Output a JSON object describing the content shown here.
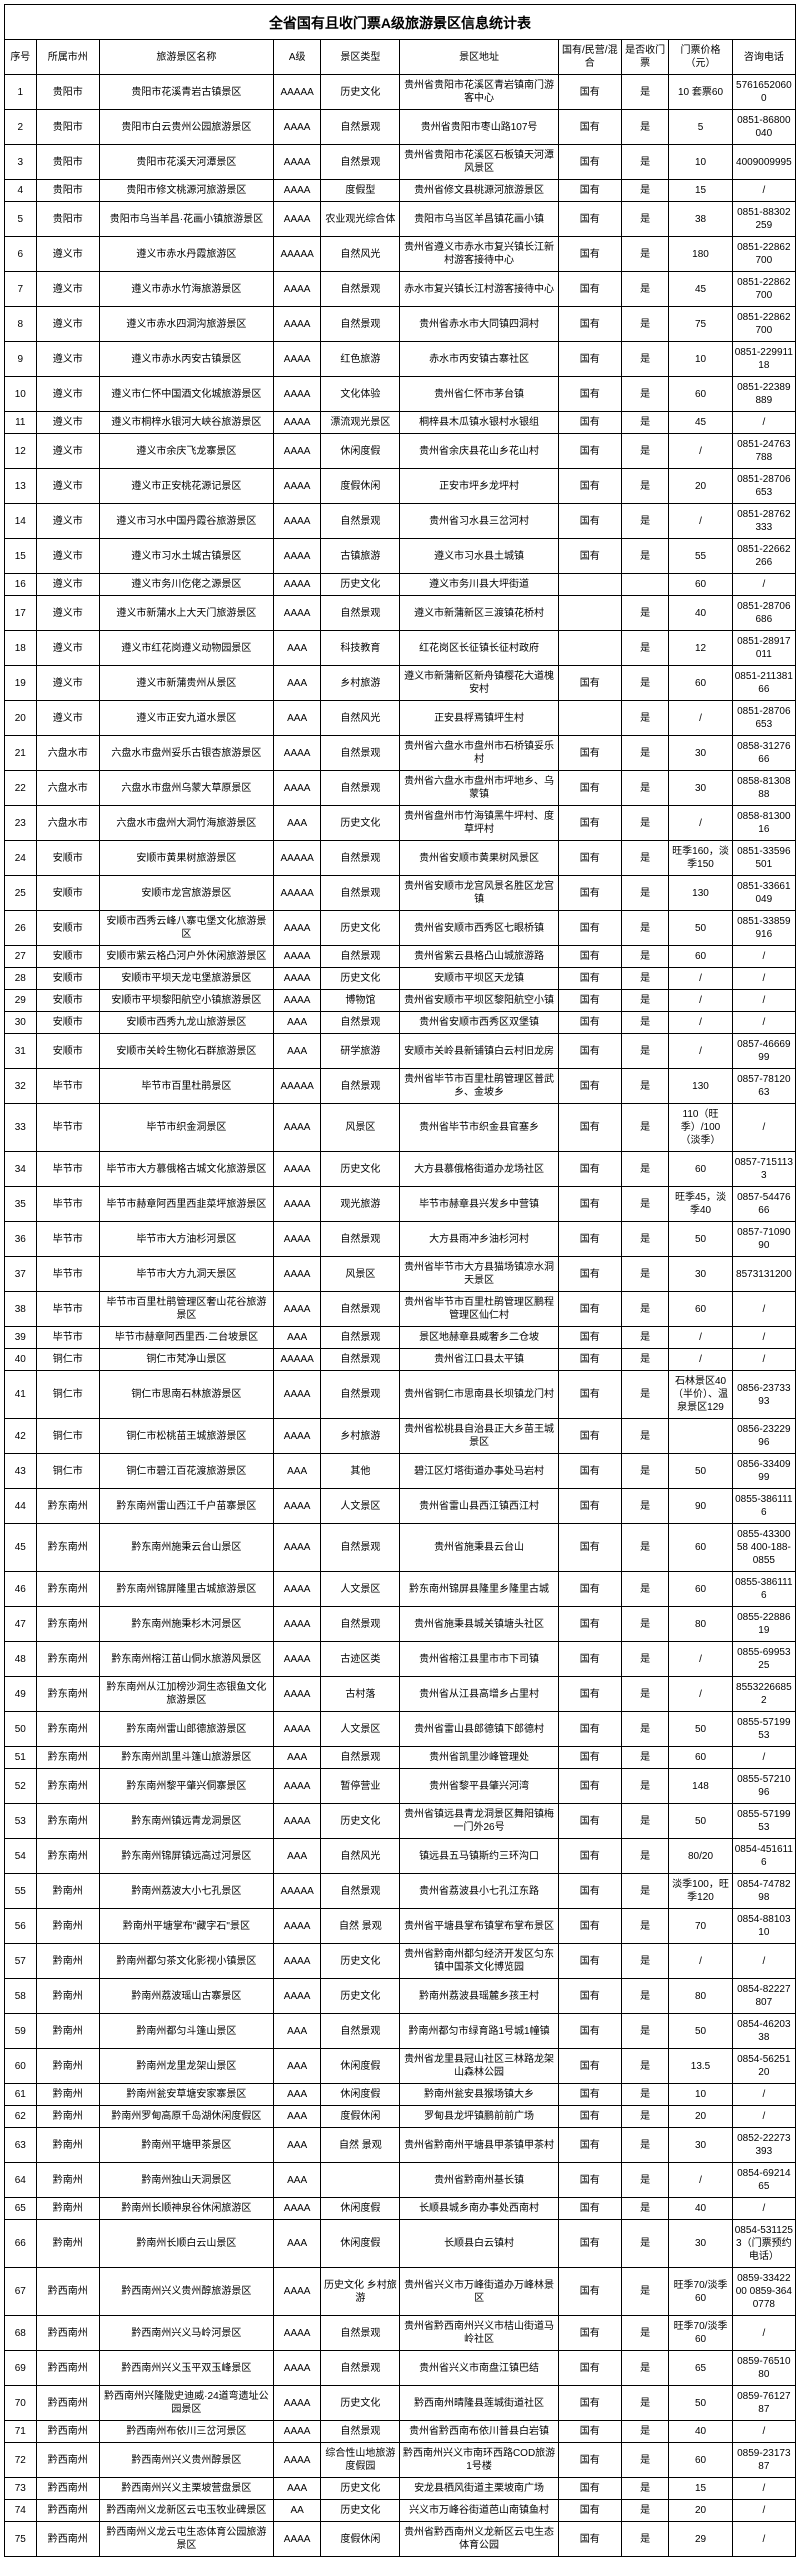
{
  "title": "全省国有且收门票A级旅游景区信息统计表",
  "columns": [
    "序号",
    "所属市州",
    "旅游景区名称",
    "A级",
    "景区类型",
    "景区地址",
    "国有/民营/混合",
    "是否收门票",
    "门票价格（元）",
    "咨询电话"
  ],
  "rows": [
    [
      "1",
      "贵阳市",
      "贵阳市花溪青岩古镇景区",
      "AAAAA",
      "历史文化",
      "贵州省贵阳市花溪区青岩镇南门游客中心",
      "国有",
      "是",
      "10\n套票60",
      "57616520600"
    ],
    [
      "2",
      "贵阳市",
      "贵阳市白云贵州公园旅游景区",
      "AAAA",
      "自然景观",
      "贵州省贵阳市枣山路107号",
      "国有",
      "是",
      "5",
      "0851-86800040"
    ],
    [
      "3",
      "贵阳市",
      "贵阳市花溪天河潭景区",
      "AAAA",
      "自然景观",
      "贵州省贵阳市花溪区石板镇天河潭风景区",
      "国有",
      "是",
      "10",
      "4009009995"
    ],
    [
      "4",
      "贵阳市",
      "贵阳市修文桃源河旅游景区",
      "AAAA",
      "度假型",
      "贵州省修文县桃源河旅游景区",
      "国有",
      "是",
      "15",
      "/"
    ],
    [
      "5",
      "贵阳市",
      "贵阳市乌当羊昌·花画小镇旅游景区",
      "AAAA",
      "农业观光综合体",
      "贵阳市乌当区羊昌镇花画小镇",
      "国有",
      "是",
      "38",
      "0851-88302259"
    ],
    [
      "6",
      "遵义市",
      "遵义市赤水丹霞旅游区",
      "AAAAA",
      "自然风光",
      "贵州省遵义市赤水市复兴镇长江新村游客接待中心",
      "国有",
      "是",
      "180",
      "0851-22862700"
    ],
    [
      "7",
      "遵义市",
      "遵义市赤水竹海旅游景区",
      "AAAA",
      "自然景观",
      "赤水市复兴镇长江村游客接待中心",
      "国有",
      "是",
      "45",
      "0851-22862700"
    ],
    [
      "8",
      "遵义市",
      "遵义市赤水四洞沟旅游景区",
      "AAAA",
      "自然景观",
      "贵州省赤水市大同镇四洞村",
      "国有",
      "是",
      "75",
      "0851-22862700"
    ],
    [
      "9",
      "遵义市",
      "遵义市赤水丙安古镇景区",
      "AAAA",
      "红色旅游",
      "赤水市丙安镇古寨社区",
      "国有",
      "是",
      "10",
      "0851-22991118"
    ],
    [
      "10",
      "遵义市",
      "遵义市仁怀中国酒文化城旅游景区",
      "AAAA",
      "文化体验",
      "贵州省仁怀市茅台镇",
      "国有",
      "是",
      "60",
      "0851-22389889"
    ],
    [
      "11",
      "遵义市",
      "遵义市桐梓水银河大峡谷旅游景区",
      "AAAA",
      "漂流观光景区",
      "桐梓县木瓜镇水银村水银组",
      "国有",
      "是",
      "45",
      "/"
    ],
    [
      "12",
      "遵义市",
      "遵义市余庆飞龙寨景区",
      "AAAA",
      "休闲度假",
      "贵州省余庆县花山乡花山村",
      "国有",
      "是",
      "/",
      "0851-24763788"
    ],
    [
      "13",
      "遵义市",
      "遵义市正安桃花源记景区",
      "AAAA",
      "度假休闲",
      "正安市坪乡龙坪村",
      "国有",
      "是",
      "20",
      "0851-28706653"
    ],
    [
      "14",
      "遵义市",
      "遵义市习水中国丹霞谷旅游景区",
      "AAAA",
      "自然景观",
      "贵州省习水县三岔河村",
      "国有",
      "是",
      "/",
      "0851-28762333"
    ],
    [
      "15",
      "遵义市",
      "遵义市习水土城古镇景区",
      "AAAA",
      "古镇旅游",
      "遵义市习水县土城镇",
      "国有",
      "是",
      "55",
      "0851-22662266"
    ],
    [
      "16",
      "遵义市",
      "遵义市务川仡佬之源景区",
      "AAAA",
      "历史文化",
      "遵义市务川县大坪街道",
      "",
      "",
      "60",
      "/"
    ],
    [
      "17",
      "遵义市",
      "遵义市新蒲水上大天门旅游景区",
      "AAAA",
      "自然景观",
      "遵义市新蒲新区三渡镇花桥村",
      "",
      "是",
      "40",
      "0851-28706686"
    ],
    [
      "18",
      "遵义市",
      "遵义市红花岗遵义动物园景区",
      "AAA",
      "科技教育",
      "红花岗区长征镇长征村政府",
      "",
      "是",
      "12",
      "0851-28917011"
    ],
    [
      "19",
      "遵义市",
      "遵义市新蒲贵州从景区",
      "AAA",
      "乡村旅游",
      "遵义市新蒲新区新舟镇樱花大道槐安村",
      "国有",
      "是",
      "60",
      "0851-21138166"
    ],
    [
      "20",
      "遵义市",
      "遵义市正安九道水景区",
      "AAA",
      "自然风光",
      "正安县桴焉镇坪生村",
      "",
      "是",
      "/",
      "0851-28706653"
    ],
    [
      "21",
      "六盘水市",
      "六盘水市盘州妥乐古银杏旅游景区",
      "AAAA",
      "自然景观",
      "贵州省六盘水市盘州市石桥镇妥乐村",
      "国有",
      "是",
      "30",
      "0858-3127666"
    ],
    [
      "22",
      "六盘水市",
      "六盘水市盘州乌蒙大草原景区",
      "AAAA",
      "自然景观",
      "贵州省六盘水市盘州市坪地乡、乌蒙镇",
      "国有",
      "是",
      "30",
      "0858-8130888"
    ],
    [
      "23",
      "六盘水市",
      "六盘水市盘州大洞竹海旅游景区",
      "AAA",
      "历史文化",
      "贵州省盘州市竹海镇黑牛坪村、度草坪村",
      "国有",
      "是",
      "/",
      "0858-8130016"
    ],
    [
      "24",
      "安顺市",
      "安顺市黄果树旅游景区",
      "AAAAA",
      "自然景观",
      "贵州省安顺市黄果树风景区",
      "国有",
      "是",
      "旺季160，淡季150",
      "0851-33596501"
    ],
    [
      "25",
      "安顺市",
      "安顺市龙宫旅游景区",
      "AAAAA",
      "自然景观",
      "贵州省安顺市龙宫风景名胜区龙宫镇",
      "国有",
      "是",
      "130",
      "0851-33661049"
    ],
    [
      "26",
      "安顺市",
      "安顺市西秀云峰八寨屯堡文化旅游景区",
      "AAAA",
      "历史文化",
      "贵州省安顺市西秀区七眼桥镇",
      "国有",
      "是",
      "50",
      "0851-33859916"
    ],
    [
      "27",
      "安顺市",
      "安顺市紫云格凸河户外休闲旅游景区",
      "AAAA",
      "自然景观",
      "贵州省紫云县格凸山城旅游路",
      "国有",
      "是",
      "60",
      "/"
    ],
    [
      "28",
      "安顺市",
      "安顺市平坝天龙屯堡旅游景区",
      "AAAA",
      "历史文化",
      "安顺市平坝区天龙镇",
      "国有",
      "是",
      "/",
      "/"
    ],
    [
      "29",
      "安顺市",
      "安顺市平坝黎阳航空小镇旅游景区",
      "AAAA",
      "博物馆",
      "贵州省安顺市平坝区黎阳航空小镇",
      "国有",
      "是",
      "/",
      "/"
    ],
    [
      "30",
      "安顺市",
      "安顺市西秀九龙山旅游景区",
      "AAA",
      "自然景观",
      "贵州省安顺市西秀区双堡镇",
      "国有",
      "是",
      "/",
      "/"
    ],
    [
      "31",
      "安顺市",
      "安顺市关岭生物化石群旅游景区",
      "AAA",
      "研学旅游",
      "安顺市关岭县新铺镇白云村旧龙房",
      "国有",
      "是",
      "/",
      "0857-4666999"
    ],
    [
      "32",
      "毕节市",
      "毕节市百里杜鹃景区",
      "AAAAA",
      "自然景观",
      "贵州省毕节市百里杜鹃管理区普武乡、金坡乡",
      "国有",
      "是",
      "130",
      "0857-7812063"
    ],
    [
      "33",
      "毕节市",
      "毕节市织金洞景区",
      "AAAA",
      "风景区",
      "贵州省毕节市织金县官塞乡",
      "国有",
      "是",
      "110（旺季）/100（淡季）",
      "/"
    ],
    [
      "34",
      "毕节市",
      "毕节市大方慕俄格古城文化旅游景区",
      "AAAA",
      "历史文化",
      "大方县慕俄格街道办龙场社区",
      "国有",
      "是",
      "60",
      "0857-7151133"
    ],
    [
      "35",
      "毕节市",
      "毕节市赫章阿西里西韭菜坪旅游景区",
      "AAAA",
      "观光旅游",
      "毕节市赫章县兴发乡中营镇",
      "国有",
      "是",
      "旺季45，淡季40",
      "0857-5447666"
    ],
    [
      "36",
      "毕节市",
      "毕节市大方油杉河景区",
      "AAAA",
      "自然景观",
      "大方县雨冲乡油杉河村",
      "国有",
      "是",
      "50",
      "0857-7109090"
    ],
    [
      "37",
      "毕节市",
      "毕节市大方九洞天景区",
      "AAAA",
      "风景区",
      "贵州省毕节市大方县猫场镇凉水洞天景区",
      "国有",
      "是",
      "30",
      "8573131200"
    ],
    [
      "38",
      "毕节市",
      "毕节市百里杜鹃管理区奢山花谷旅游景区",
      "AAAA",
      "自然景观",
      "贵州省毕节市百里杜鹃管理区鹏程管理区仙仁村",
      "国有",
      "是",
      "60",
      "/"
    ],
    [
      "39",
      "毕节市",
      "毕节市赫章阿西里西·二台坡景区",
      "AAA",
      "自然景观",
      "景区地赫章县威奢乡二仓坡",
      "国有",
      "是",
      "/",
      "/"
    ],
    [
      "40",
      "铜仁市",
      "铜仁市梵净山景区",
      "AAAAA",
      "自然景观",
      "贵州省江口县太平镇",
      "国有",
      "是",
      "/",
      "/"
    ],
    [
      "41",
      "铜仁市",
      "铜仁市思南石林旅游景区",
      "AAAA",
      "自然景观",
      "贵州省铜仁市思南县长坝镇龙门村",
      "国有",
      "是",
      "石林景区40（半价）、温泉景区129",
      "0856-2373393"
    ],
    [
      "42",
      "铜仁市",
      "铜仁市松桃苗王城旅游景区",
      "AAAA",
      "乡村旅游",
      "贵州省松桃县自治县正大乡苗王城景区",
      "国有",
      "是",
      "",
      "0856-2322996"
    ],
    [
      "43",
      "铜仁市",
      "铜仁市碧江百花渡旅游景区",
      "AAA",
      "其他",
      "碧江区灯塔街道办事处马岩村",
      "国有",
      "是",
      "50",
      "0856-3340999"
    ],
    [
      "44",
      "黔东南州",
      "黔东南州雷山西江千户苗寨景区",
      "AAAA",
      "人文景区",
      "贵州省雷山县西江镇西江村",
      "国有",
      "是",
      "90",
      "0855-3861116"
    ],
    [
      "45",
      "黔东南州",
      "黔东南州施秉云台山景区",
      "AAAA",
      "自然景观",
      "贵州省施秉县云台山",
      "国有",
      "是",
      "60",
      "0855-4330058 400-188-0855"
    ],
    [
      "46",
      "黔东南州",
      "黔东南州锦屏隆里古城旅游景区",
      "AAAA",
      "人文景区",
      "黔东南州锦屏县隆里乡隆里古城",
      "国有",
      "是",
      "60",
      "0855-3861116"
    ],
    [
      "47",
      "黔东南州",
      "黔东南州施秉杉木河景区",
      "AAAA",
      "自然景观",
      "贵州省施秉县城关镇塘头社区",
      "国有",
      "是",
      "80",
      "0855-2288619"
    ],
    [
      "48",
      "黔东南州",
      "黔东南州榕江苗山侗水旅游风景区",
      "AAAA",
      "古迹区类",
      "贵州省榕江县里市市下司镇",
      "国有",
      "是",
      "/",
      "0855-6995325"
    ],
    [
      "49",
      "黔东南州",
      "黔东南州从江加榜沙洞生态银鱼文化旅游景区",
      "AAAA",
      "古村落",
      "贵州省从江县高增乡占里村",
      "国有",
      "是",
      "/",
      "85532266852"
    ],
    [
      "50",
      "黔东南州",
      "黔东南州雷山郎德旅游景区",
      "AAAA",
      "人文景区",
      "贵州省雷山县郎德镇下郎德村",
      "国有",
      "是",
      "50",
      "0855-5719953"
    ],
    [
      "51",
      "黔东南州",
      "黔东南州凯里斗篷山旅游景区",
      "AAA",
      "自然景观",
      "贵州省凯里沙峰管理处",
      "国有",
      "是",
      "60",
      "/"
    ],
    [
      "52",
      "黔东南州",
      "黔东南州黎平肇兴侗寨景区",
      "AAAA",
      "暂停营业",
      "贵州省黎平县肇兴河湾",
      "国有",
      "是",
      "148",
      "0855-5721096"
    ],
    [
      "53",
      "黔东南州",
      "黔东南州镇远青龙洞景区",
      "AAAA",
      "历史文化",
      "贵州省镇远县青龙洞景区舞阳镇梅一门外26号",
      "国有",
      "是",
      "50",
      "0855-5719953"
    ],
    [
      "54",
      "黔东南州",
      "黔东南州锦屏镇远高过河景区",
      "AAA",
      "自然风光",
      "镇远县五马镇斯约三环沟口",
      "国有",
      "是",
      "80/20",
      "0854-4516116"
    ],
    [
      "55",
      "黔南州",
      "黔南州荔波大小七孔景区",
      "AAAAA",
      "自然景观",
      "贵州省荔波县小七孔江东路",
      "国有",
      "是",
      "淡季100，旺季120",
      "0854-7478298"
    ],
    [
      "56",
      "黔南州",
      "黔南州平塘掌布\"藏字石\"景区",
      "AAAA",
      "自然\n景观",
      "贵州省平塘县掌布镇掌布掌布景区",
      "国有",
      "是",
      "70",
      "0854-8810310"
    ],
    [
      "57",
      "黔南州",
      "黔南州都匀茶文化影视小镇景区",
      "AAAA",
      "历史文化",
      "贵州省黔南州都匀经济开发区匀东镇中国茶文化博览园",
      "国有",
      "是",
      "/",
      "/"
    ],
    [
      "58",
      "黔南州",
      "黔南州荔波瑶山古寨景区",
      "AAAA",
      "历史文化",
      "黔南州荔波县瑶麓乡孩王村",
      "国有",
      "是",
      "80",
      "0854-82227807"
    ],
    [
      "59",
      "黔南州",
      "黔南州都匀斗篷山景区",
      "AAA",
      "自然景观",
      "黔南州都匀市绿育路1号城1幢镇",
      "国有",
      "是",
      "50",
      "0854-4620338"
    ],
    [
      "60",
      "黔南州",
      "黔南州龙里龙架山景区",
      "AAA",
      "休闲度假",
      "贵州省龙里县冠山社区三林路龙架山森林公园",
      "国有",
      "是",
      "13.5",
      "0854-5625120"
    ],
    [
      "61",
      "黔南州",
      "黔南州瓮安草塘安家寨景区",
      "AAA",
      "休闲度假",
      "黔南州瓮安县猴场镇大乡",
      "国有",
      "是",
      "10",
      "/"
    ],
    [
      "62",
      "黔南州",
      "黔南州罗甸高原千岛湖休闲度假区",
      "AAA",
      "度假休闲",
      "罗甸县龙坪镇鹏前前广场",
      "国有",
      "是",
      "20",
      "/"
    ],
    [
      "63",
      "黔南州",
      "黔南州平塘甲茶景区",
      "AAA",
      "自然\n景观",
      "贵州省黔南州平塘县甲茶镇甲茶村",
      "国有",
      "是",
      "30",
      "0852-22273393"
    ],
    [
      "64",
      "黔南州",
      "黔南州独山天洞景区",
      "AAA",
      "",
      "贵州省黔南州基长镇",
      "国有",
      "是",
      "/",
      "0854-6921465"
    ],
    [
      "65",
      "黔南州",
      "黔南州长顺神泉谷休闲旅游区",
      "AAAA",
      "休闲度假",
      "长顺县城乡南办事处西南村",
      "国有",
      "是",
      "40",
      "/"
    ],
    [
      "66",
      "黔南州",
      "黔南州长顺白云山景区",
      "AAA",
      "休闲度假",
      "长顺县白云镇村",
      "国有",
      "是",
      "30",
      "0854-5311253（门票预约电话）"
    ],
    [
      "67",
      "黔西南州",
      "黔西南州兴义贵州醇旅游景区",
      "AAAA",
      "历史文化\n乡村旅游",
      "贵州省兴义市万峰街道办万峰林景区",
      "国有",
      "是",
      "旺季70/淡季60",
      "0859-3342200 0859-3640778"
    ],
    [
      "68",
      "黔西南州",
      "黔西南州兴义马岭河景区",
      "AAAA",
      "自然景观",
      "贵州省黔西南州兴义市桔山街道马岭社区",
      "国有",
      "是",
      "旺季70/淡季60",
      "/"
    ],
    [
      "69",
      "黔西南州",
      "黔西南州兴义玉平双玉峰景区",
      "AAAA",
      "自然景观",
      "贵州省兴义市南盘江镇巴结",
      "国有",
      "是",
      "65",
      "0859-7651080"
    ],
    [
      "70",
      "黔西南州",
      "黔西南州兴隆陇史迪威·24道弯遗址公园景区",
      "AAAA",
      "历史文化",
      "黔西南州晴隆县莲城街道社区",
      "国有",
      "是",
      "50",
      "0859-7612787"
    ],
    [
      "71",
      "黔西南州",
      "黔西南州布依川三岔河景区",
      "AAAA",
      "自然景观",
      "贵州省黔西南布依川普县白岩镇",
      "国有",
      "是",
      "40",
      "/"
    ],
    [
      "72",
      "黔西南州",
      "黔西南州兴义贵州醇景区",
      "AAAA",
      "综合性山地旅游度假园",
      "黔西南州兴义市南环西路COD旅游1号楼",
      "国有",
      "是",
      "60",
      "0859-2317387"
    ],
    [
      "73",
      "黔西南州",
      "黔西南州兴义主栗坡营盘景区",
      "AAA",
      "历史文化",
      "安龙县栖风街道主栗坡南广场",
      "国有",
      "是",
      "15",
      "/"
    ],
    [
      "74",
      "黔西南州",
      "黔西南州义龙新区云屯玉牧业碑景区",
      "AA",
      "历史文化",
      "兴义市万峰谷街道芭山南镇鱼村",
      "国有",
      "是",
      "20",
      "/"
    ],
    [
      "75",
      "黔西南州",
      "黔西南州义龙云屯生态体育公园旅游景区",
      "AAAA",
      "度假休闲",
      "贵州省黔西南州义龙新区云屯生态体育公园",
      "国有",
      "是",
      "29",
      "/"
    ]
  ]
}
